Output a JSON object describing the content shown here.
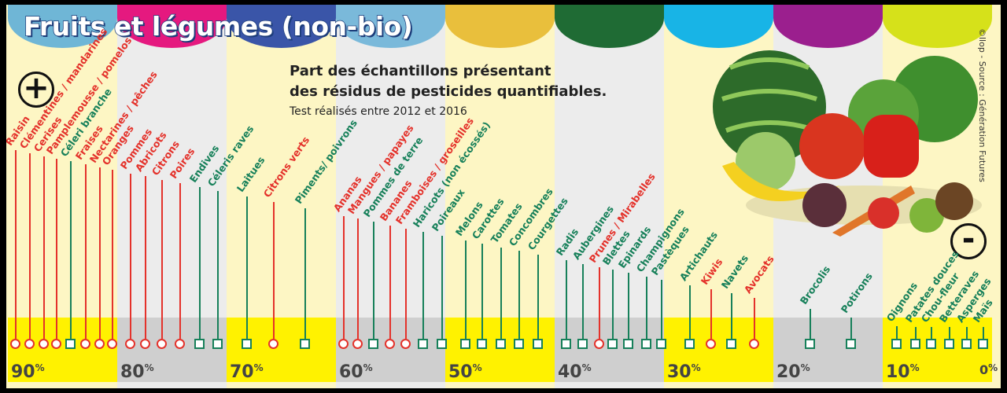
{
  "title": "Fruits et légumes (non-bio)",
  "subtitle_line1": "Part des échantillons présentant",
  "subtitle_line2": "des résidus de pesticides quantifiables.",
  "subtitle_note": "Test réalisés entre 2012 et 2016",
  "credit": "©llop - Source : Génération Futures",
  "more_symbol": "+",
  "less_symbol": "-",
  "colors": {
    "fruit": "#e4322b",
    "vegetable": "#17805a"
  },
  "chart_data": {
    "type": "scatter",
    "title": "Fruits et légumes (non-bio)",
    "xlabel": "Part des échantillons présentant des résidus de pesticides quantifiables (%)",
    "xlim": [
      90,
      0
    ],
    "tick_labels": [
      "90%",
      "80%",
      "70%",
      "60%",
      "50%",
      "40%",
      "30%",
      "20%",
      "10%",
      "0%"
    ],
    "ticks": [
      90,
      80,
      70,
      60,
      50,
      40,
      30,
      20,
      10,
      0
    ],
    "points": [
      {
        "name": "Raisin",
        "value": 89.6,
        "kind": "fruit"
      },
      {
        "name": "Clémentines / mandarines",
        "value": 88.3,
        "kind": "fruit"
      },
      {
        "name": "Cerises",
        "value": 87.0,
        "kind": "fruit"
      },
      {
        "name": "Pamplemousse / pomelos",
        "value": 85.8,
        "kind": "fruit"
      },
      {
        "name": "Céleri branche",
        "value": 84.5,
        "kind": "vegetable"
      },
      {
        "name": "Fraises",
        "value": 83.2,
        "kind": "fruit"
      },
      {
        "name": "Nectarines / pêches",
        "value": 81.9,
        "kind": "fruit"
      },
      {
        "name": "Oranges",
        "value": 80.7,
        "kind": "fruit"
      },
      {
        "name": "Pommes",
        "value": 79.1,
        "kind": "fruit"
      },
      {
        "name": "Abricots",
        "value": 77.7,
        "kind": "fruit"
      },
      {
        "name": "Citrons",
        "value": 76.2,
        "kind": "fruit"
      },
      {
        "name": "Poires",
        "value": 74.5,
        "kind": "fruit"
      },
      {
        "name": "Endives",
        "value": 72.7,
        "kind": "vegetable"
      },
      {
        "name": "Céleris raves",
        "value": 71.1,
        "kind": "vegetable"
      },
      {
        "name": "Laitues",
        "value": 68.4,
        "kind": "vegetable"
      },
      {
        "name": "Citrons verts",
        "value": 66.0,
        "kind": "fruit"
      },
      {
        "name": "Piments/ poivrons",
        "value": 63.1,
        "kind": "vegetable"
      },
      {
        "name": "Ananas",
        "value": 59.6,
        "kind": "fruit"
      },
      {
        "name": "Mangues / papayes",
        "value": 58.3,
        "kind": "fruit"
      },
      {
        "name": "Pommes de terre",
        "value": 56.8,
        "kind": "vegetable"
      },
      {
        "name": "Bananes",
        "value": 55.3,
        "kind": "fruit"
      },
      {
        "name": "Framboises / groseilles",
        "value": 53.9,
        "kind": "fruit"
      },
      {
        "name": "Haricots (non écossés)",
        "value": 52.3,
        "kind": "vegetable"
      },
      {
        "name": "Poireaux",
        "value": 50.6,
        "kind": "vegetable"
      },
      {
        "name": "Melons",
        "value": 48.4,
        "kind": "vegetable"
      },
      {
        "name": "Carottes",
        "value": 46.9,
        "kind": "vegetable"
      },
      {
        "name": "Tomates",
        "value": 45.2,
        "kind": "vegetable"
      },
      {
        "name": "Concombres",
        "value": 43.5,
        "kind": "vegetable"
      },
      {
        "name": "Courgettes",
        "value": 41.8,
        "kind": "vegetable"
      },
      {
        "name": "Radis",
        "value": 39.2,
        "kind": "vegetable"
      },
      {
        "name": "Aubergines",
        "value": 37.7,
        "kind": "vegetable"
      },
      {
        "name": "Prunes / Mirabelles",
        "value": 36.2,
        "kind": "fruit"
      },
      {
        "name": "Blettes",
        "value": 35.0,
        "kind": "vegetable"
      },
      {
        "name": "Epinards",
        "value": 33.5,
        "kind": "vegetable"
      },
      {
        "name": "Champignons",
        "value": 31.9,
        "kind": "vegetable"
      },
      {
        "name": "Pastèques",
        "value": 30.5,
        "kind": "vegetable"
      },
      {
        "name": "Artichauts",
        "value": 27.9,
        "kind": "vegetable"
      },
      {
        "name": "Kiwis",
        "value": 26.0,
        "kind": "fruit"
      },
      {
        "name": "Navets",
        "value": 24.1,
        "kind": "vegetable"
      },
      {
        "name": "Avocats",
        "value": 22.0,
        "kind": "fruit"
      },
      {
        "name": "Brocolis",
        "value": 16.9,
        "kind": "vegetable"
      },
      {
        "name": "Potirons",
        "value": 13.2,
        "kind": "vegetable"
      },
      {
        "name": "Oignons",
        "value": 9.0,
        "kind": "vegetable"
      },
      {
        "name": "Patates douces",
        "value": 7.3,
        "kind": "vegetable"
      },
      {
        "name": "Chou-fleur",
        "value": 5.8,
        "kind": "vegetable"
      },
      {
        "name": "Betteraves",
        "value": 4.2,
        "kind": "vegetable"
      },
      {
        "name": "Asperges",
        "value": 2.6,
        "kind": "vegetable"
      },
      {
        "name": "Maïs",
        "value": 1.1,
        "kind": "vegetable"
      }
    ]
  }
}
